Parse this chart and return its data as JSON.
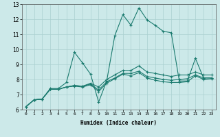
{
  "xlabel": "Humidex (Indice chaleur)",
  "bg_color": "#cce9e9",
  "grid_color": "#aad0d0",
  "line_color": "#1a7a6e",
  "xlim": [
    -0.5,
    23.5
  ],
  "ylim": [
    6,
    13
  ],
  "xticks": [
    0,
    1,
    2,
    3,
    4,
    5,
    6,
    7,
    8,
    9,
    10,
    11,
    12,
    13,
    14,
    15,
    16,
    17,
    18,
    19,
    20,
    21,
    22,
    23
  ],
  "yticks": [
    6,
    7,
    8,
    9,
    10,
    11,
    12,
    13
  ],
  "series": [
    [
      6.2,
      6.65,
      6.7,
      7.4,
      7.4,
      7.8,
      9.8,
      9.1,
      8.35,
      6.5,
      7.9,
      10.9,
      12.3,
      11.6,
      12.75,
      11.95,
      11.6,
      11.2,
      11.1,
      7.9,
      7.9,
      9.4,
      8.1,
      8.1
    ],
    [
      6.2,
      6.65,
      6.7,
      7.35,
      7.35,
      7.5,
      7.55,
      7.5,
      7.65,
      7.2,
      7.75,
      8.05,
      8.35,
      8.25,
      8.45,
      8.1,
      7.95,
      7.85,
      7.8,
      7.8,
      7.85,
      8.25,
      8.0,
      8.05
    ],
    [
      6.2,
      6.65,
      6.7,
      7.35,
      7.35,
      7.5,
      7.6,
      7.55,
      7.7,
      7.3,
      7.85,
      8.1,
      8.4,
      8.4,
      8.55,
      8.2,
      8.1,
      8.0,
      7.95,
      8.0,
      8.05,
      8.3,
      8.1,
      8.1
    ],
    [
      6.2,
      6.65,
      6.7,
      7.35,
      7.35,
      7.5,
      7.6,
      7.55,
      7.75,
      7.5,
      8.0,
      8.3,
      8.6,
      8.6,
      8.9,
      8.5,
      8.4,
      8.3,
      8.2,
      8.3,
      8.3,
      8.5,
      8.3,
      8.3
    ]
  ]
}
